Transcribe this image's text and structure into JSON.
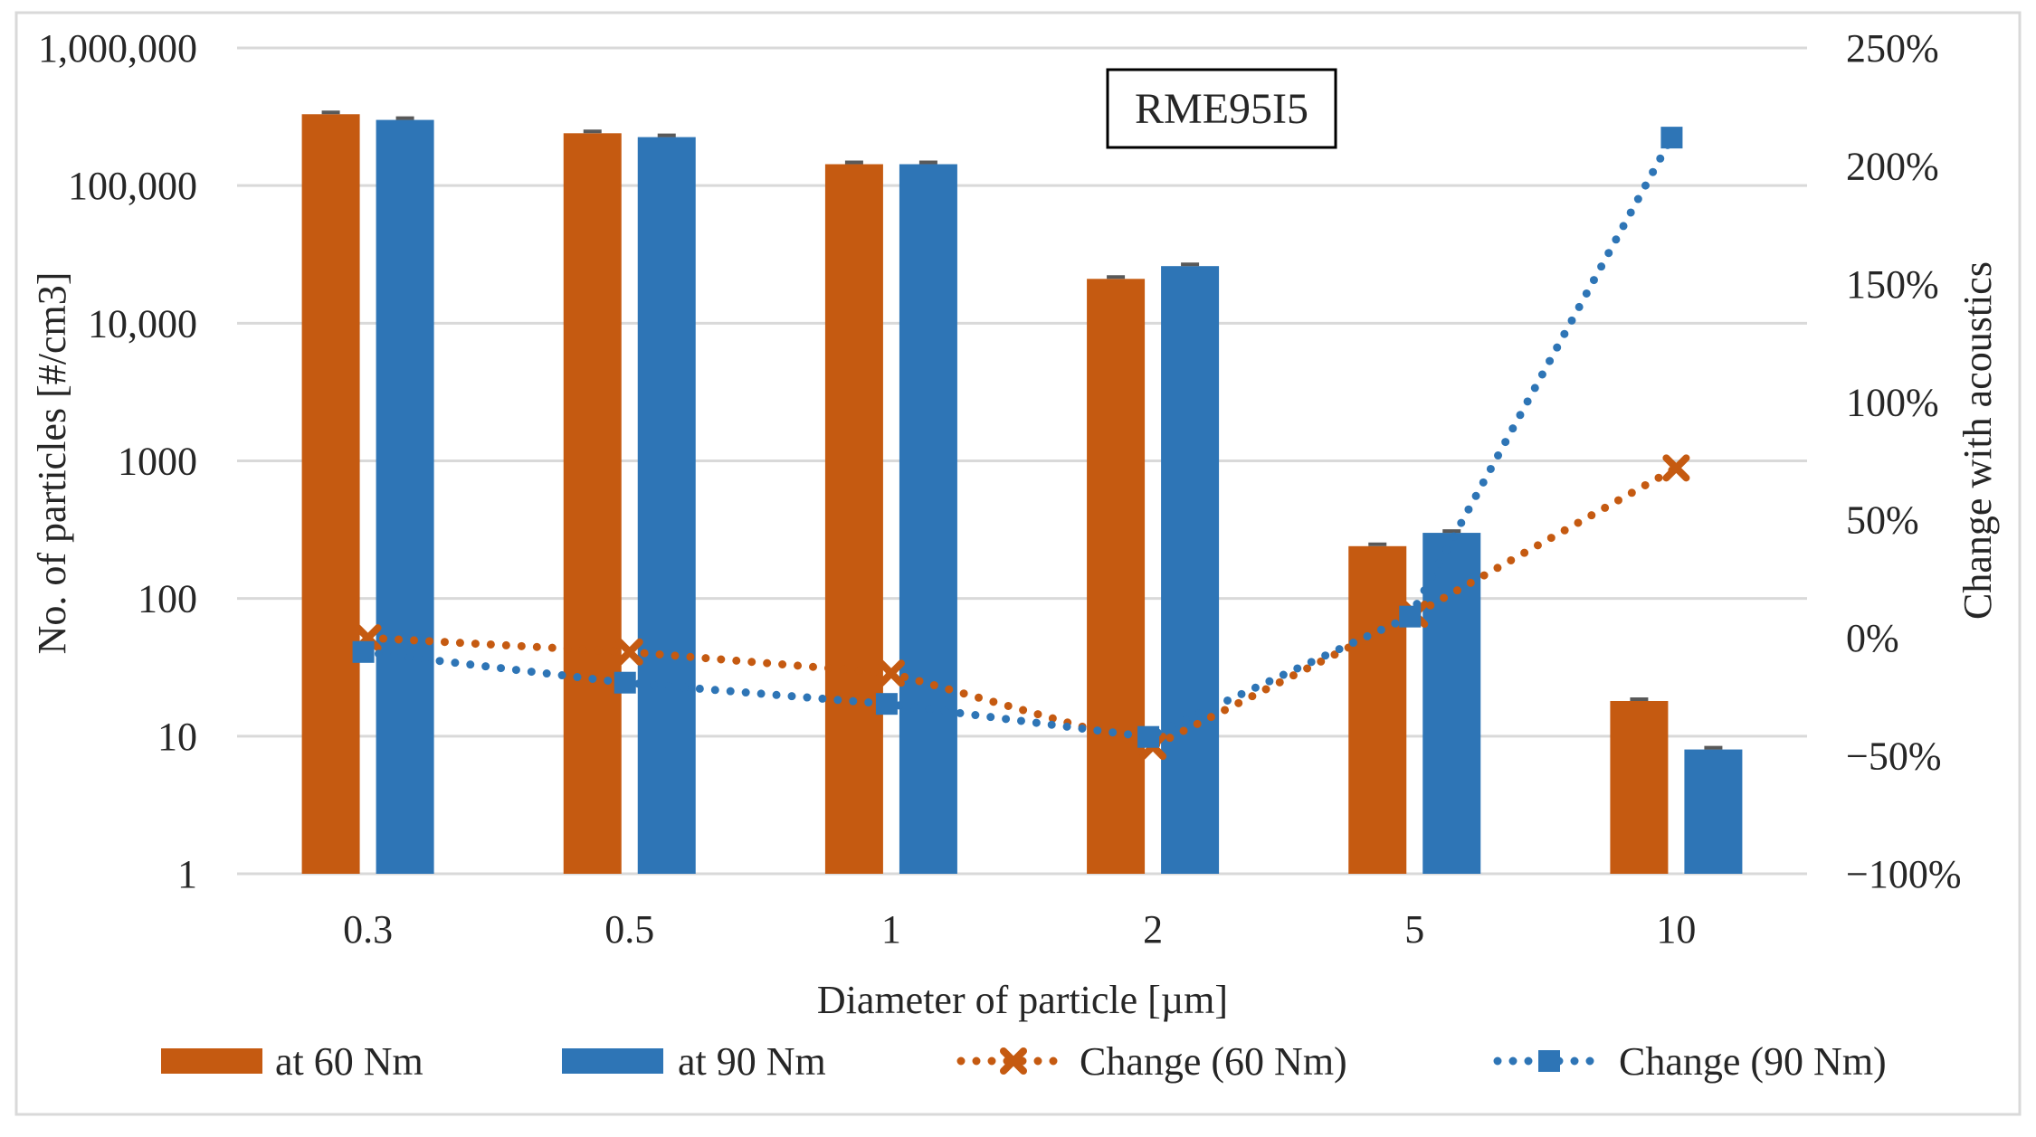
{
  "chart_data": {
    "type": "bar",
    "title": "RME95I5",
    "xlabel": "Diameter of particle [µm]",
    "ylabel": "No. of particles [#/cm3]",
    "y2label": "Change with acoustics",
    "categories": [
      "0.3",
      "0.5",
      "1",
      "2",
      "5",
      "10"
    ],
    "yscale": "log",
    "ylim": [
      1,
      1000000
    ],
    "yticks": [
      "1",
      "10",
      "100",
      "1000",
      "10,000",
      "100,000",
      "1,000,000"
    ],
    "y2lim": [
      -100,
      250
    ],
    "y2ticks": [
      "−100%",
      "−50%",
      "0%",
      "50%",
      "100%",
      "150%",
      "200%",
      "250%"
    ],
    "grid": true,
    "legend_position": "bottom",
    "bar_series": [
      {
        "name": "at 60 Nm",
        "color": "#c55a11",
        "values": [
          330000,
          240000,
          143000,
          21000,
          240,
          18
        ]
      },
      {
        "name": "at 90 Nm",
        "color": "#2e75b6",
        "values": [
          300000,
          225000,
          143000,
          26000,
          300,
          8
        ]
      }
    ],
    "line_series": [
      {
        "name": "Change (60 Nm)",
        "color": "#c55a11",
        "marker": "x",
        "style": "dotted",
        "values": [
          0,
          -6,
          -15,
          -46,
          10,
          72
        ]
      },
      {
        "name": "Change (90 Nm)",
        "color": "#2e75b6",
        "marker": "square",
        "style": "dotted",
        "values": [
          -6,
          -19,
          -28,
          -42,
          9,
          212
        ]
      }
    ]
  }
}
